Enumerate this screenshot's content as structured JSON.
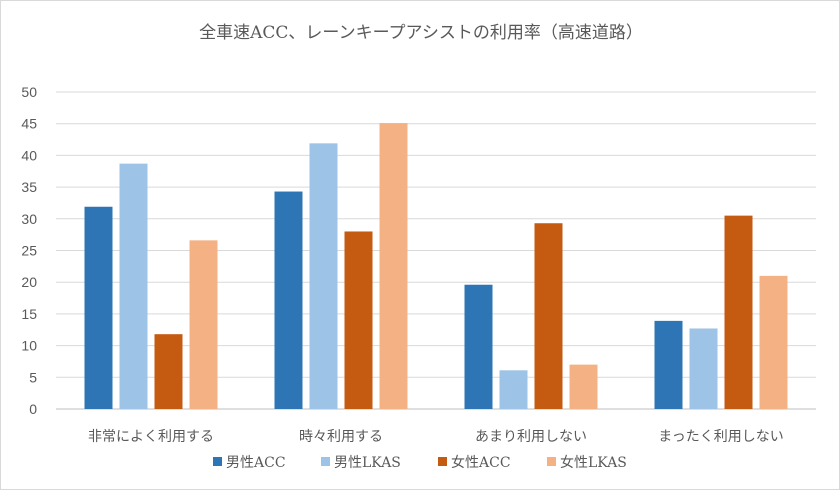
{
  "chart_data": {
    "type": "bar",
    "title": "全車速ACC、レーンキープアシストの利用率（高速道路）",
    "xlabel": "",
    "ylabel": "",
    "ylim": [
      0,
      50
    ],
    "yticks": [
      0,
      5,
      10,
      15,
      20,
      25,
      30,
      35,
      40,
      45,
      50
    ],
    "grid": true,
    "legend_position": "bottom",
    "categories": [
      "非常によく利用する",
      "時々利用する",
      "あまり利用しない",
      "まったく利用しない"
    ],
    "series": [
      {
        "name": "男性ACC",
        "color": "#2e75b6",
        "values": [
          31.9,
          34.3,
          19.6,
          13.9
        ]
      },
      {
        "name": "男性LKAS",
        "color": "#9dc3e6",
        "values": [
          38.7,
          41.9,
          6.1,
          12.7
        ]
      },
      {
        "name": "女性ACC",
        "color": "#c55a11",
        "values": [
          11.8,
          28.0,
          29.3,
          30.5
        ]
      },
      {
        "name": "女性LKAS",
        "color": "#f4b183",
        "values": [
          26.6,
          45.1,
          7.0,
          21.0
        ]
      }
    ]
  }
}
